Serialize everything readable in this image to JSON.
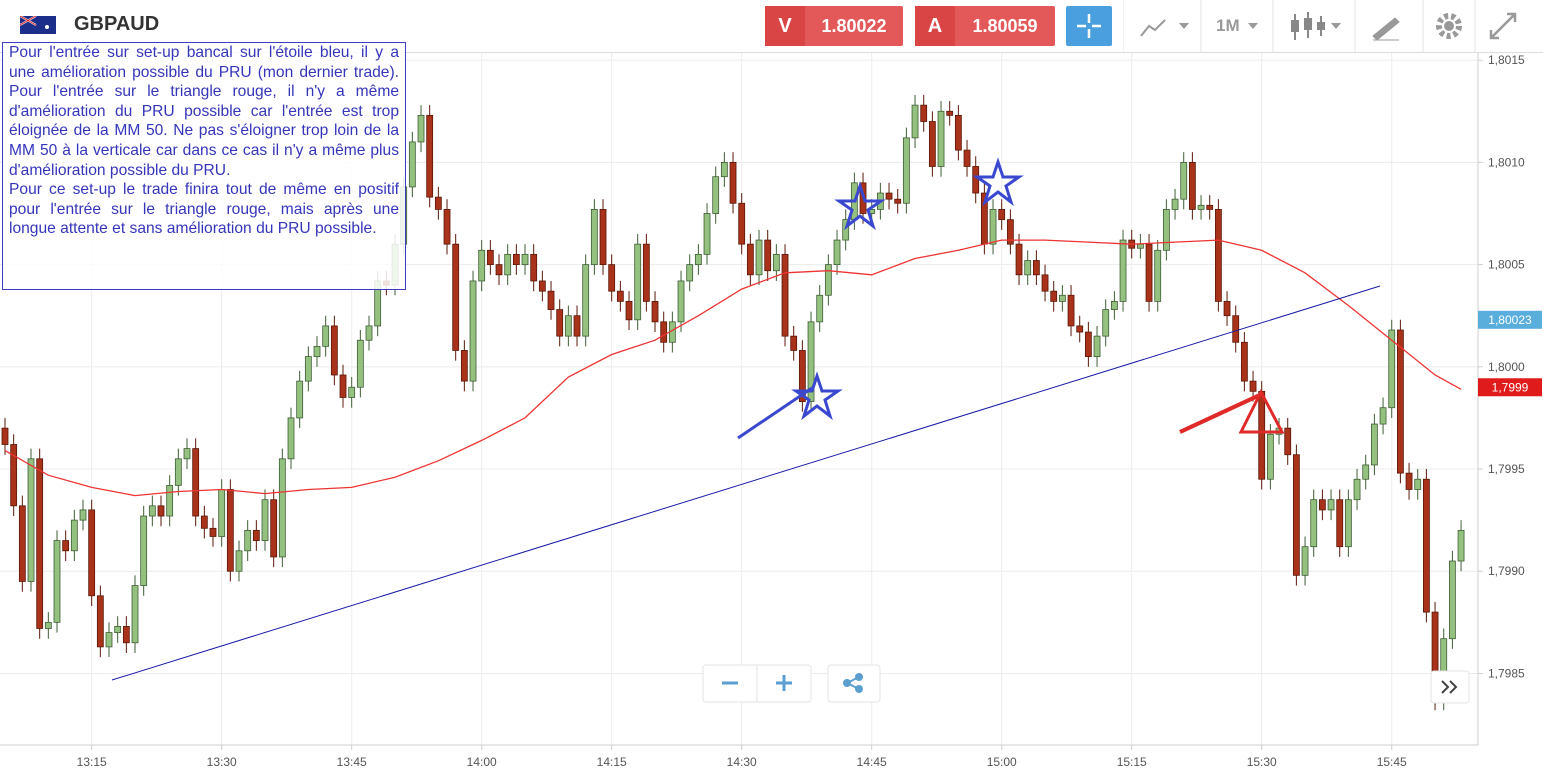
{
  "header": {
    "symbol": "GBPAUD",
    "bid_label": "V",
    "bid": 1.80022,
    "ask_label": "A",
    "ask": 1.80059,
    "timeframe": "1M"
  },
  "chart_data": {
    "type": "candlestick",
    "up_color": "#94c17f",
    "down_color": "#a8321a",
    "categories": [
      "13:05",
      "13:06",
      "13:07",
      "13:08",
      "13:09",
      "13:10",
      "13:11",
      "13:12",
      "13:13",
      "13:14",
      "13:15",
      "13:16",
      "13:17",
      "13:18",
      "13:19",
      "13:20",
      "13:21",
      "13:22",
      "13:23",
      "13:24",
      "13:25",
      "13:26",
      "13:27",
      "13:28",
      "13:29",
      "13:30",
      "13:31",
      "13:32",
      "13:33",
      "13:34",
      "13:35",
      "13:36",
      "13:37",
      "13:38",
      "13:39",
      "13:40",
      "13:41",
      "13:42",
      "13:43",
      "13:44",
      "13:45",
      "13:46",
      "13:47",
      "13:48",
      "13:49",
      "13:50",
      "13:51",
      "13:52",
      "13:53",
      "13:54",
      "13:55",
      "13:56",
      "13:57",
      "13:58",
      "13:59",
      "14:00",
      "14:01",
      "14:02",
      "14:03",
      "14:04",
      "14:05",
      "14:06",
      "14:07",
      "14:08",
      "14:09",
      "14:10",
      "14:11",
      "14:12",
      "14:13",
      "14:14",
      "14:15",
      "14:16",
      "14:17",
      "14:18",
      "14:19",
      "14:20",
      "14:21",
      "14:22",
      "14:23",
      "14:24",
      "14:25",
      "14:26",
      "14:27",
      "14:28",
      "14:29",
      "14:30",
      "14:31",
      "14:32",
      "14:33",
      "14:34",
      "14:35",
      "14:36",
      "14:37",
      "14:38",
      "14:39",
      "14:40",
      "14:41",
      "14:42",
      "14:43",
      "14:44",
      "14:45",
      "14:46",
      "14:47",
      "14:48",
      "14:49",
      "14:50",
      "14:51",
      "14:52",
      "14:53",
      "14:54",
      "14:55",
      "14:56",
      "14:57",
      "14:58",
      "14:59",
      "15:00",
      "15:01",
      "15:02",
      "15:03",
      "15:04",
      "15:05",
      "15:06",
      "15:07",
      "15:08",
      "15:09",
      "15:10",
      "15:11",
      "15:12",
      "15:13",
      "15:14",
      "15:15",
      "15:16",
      "15:17",
      "15:18",
      "15:19",
      "15:20",
      "15:21",
      "15:22",
      "15:23",
      "15:24",
      "15:25",
      "15:26",
      "15:27",
      "15:28",
      "15:29",
      "15:30",
      "15:31",
      "15:32",
      "15:33",
      "15:34",
      "15:35",
      "15:36",
      "15:37",
      "15:38",
      "15:39",
      "15:40",
      "15:41",
      "15:42",
      "15:43",
      "15:44",
      "15:45",
      "15:46",
      "15:47",
      "15:48",
      "15:49",
      "15:50",
      "15:51",
      "15:52",
      "15:53"
    ],
    "open": [
      1.7997,
      1.79962,
      1.79932,
      1.79895,
      1.79955,
      1.79872,
      1.79875,
      1.79915,
      1.7991,
      1.79925,
      1.7993,
      1.79888,
      1.79863,
      1.7987,
      1.79873,
      1.79865,
      1.79893,
      1.79927,
      1.79932,
      1.79927,
      1.79942,
      1.79955,
      1.7996,
      1.79927,
      1.79921,
      1.79917,
      1.7994,
      1.799,
      1.7991,
      1.7992,
      1.79915,
      1.79935,
      1.79907,
      1.79955,
      1.79975,
      1.79993,
      1.80005,
      1.8001,
      1.8002,
      1.79996,
      1.79985,
      1.7999,
      1.80013,
      1.8002,
      1.80042,
      1.8004,
      1.8006,
      1.80088,
      1.8011,
      1.80123,
      1.80083,
      1.80077,
      1.8006,
      1.80008,
      1.79993,
      1.80042,
      1.80057,
      1.8005,
      1.80045,
      1.80055,
      1.8005,
      1.80055,
      1.80042,
      1.80037,
      1.80028,
      1.80015,
      1.80025,
      1.80015,
      1.8005,
      1.80077,
      1.8005,
      1.80037,
      1.80032,
      1.80023,
      1.8006,
      1.80032,
      1.80022,
      1.80012,
      1.80022,
      1.80042,
      1.8005,
      1.80055,
      1.80075,
      1.80093,
      1.801,
      1.8008,
      1.8006,
      1.80045,
      1.80062,
      1.80047,
      1.80055,
      1.80015,
      1.80008,
      1.79983,
      1.80022,
      1.80035,
      1.8005,
      1.80062,
      1.80072,
      1.8009,
      1.80075,
      1.80077,
      1.80085,
      1.80082,
      1.8008,
      1.80112,
      1.80128,
      1.8012,
      1.80098,
      1.80125,
      1.80123,
      1.80106,
      1.80098,
      1.80085,
      1.8006,
      1.80077,
      1.80072,
      1.8006,
      1.80045,
      1.80052,
      1.80045,
      1.80037,
      1.80032,
      1.80035,
      1.8002,
      1.80017,
      1.80005,
      1.80015,
      1.80028,
      1.80032,
      1.80062,
      1.80058,
      1.8006,
      1.80032,
      1.80057,
      1.80077,
      1.80082,
      1.801,
      1.80077,
      1.80079,
      1.80077,
      1.80032,
      1.80025,
      1.80012,
      1.79993,
      1.79988,
      1.79945,
      1.79967,
      1.7997,
      1.79957,
      1.79898,
      1.79912,
      1.79935,
      1.7993,
      1.79935,
      1.79912,
      1.79935,
      1.79945,
      1.79952,
      1.79972,
      1.7998,
      1.80018,
      1.79948,
      1.7994,
      1.79945,
      1.7988,
      1.79837,
      1.79867,
      1.79905
    ],
    "high": [
      1.79975,
      1.79967,
      1.79937,
      1.7996,
      1.7996,
      1.7988,
      1.7992,
      1.7992,
      1.7993,
      1.79935,
      1.79935,
      1.79893,
      1.79875,
      1.79878,
      1.79878,
      1.79898,
      1.79932,
      1.79937,
      1.79937,
      1.79947,
      1.7996,
      1.79965,
      1.79965,
      1.79932,
      1.79926,
      1.79945,
      1.79945,
      1.79915,
      1.79925,
      1.79925,
      1.7994,
      1.7994,
      1.7996,
      1.7998,
      1.79998,
      1.8001,
      1.80015,
      1.80025,
      1.80025,
      1.80001,
      1.79995,
      1.80018,
      1.80025,
      1.80047,
      1.80047,
      1.80065,
      1.80093,
      1.80115,
      1.80128,
      1.80128,
      1.80088,
      1.80082,
      1.80065,
      1.80013,
      1.80047,
      1.80062,
      1.80062,
      1.80055,
      1.8006,
      1.8006,
      1.8006,
      1.8006,
      1.80047,
      1.80042,
      1.80033,
      1.8003,
      1.8003,
      1.80055,
      1.80082,
      1.80082,
      1.80055,
      1.80042,
      1.80037,
      1.80065,
      1.80065,
      1.80037,
      1.80027,
      1.80027,
      1.80047,
      1.80055,
      1.8006,
      1.8008,
      1.80098,
      1.80105,
      1.80105,
      1.80085,
      1.80065,
      1.80067,
      1.80067,
      1.8006,
      1.8006,
      1.8002,
      1.80013,
      1.80027,
      1.8004,
      1.80055,
      1.80067,
      1.80077,
      1.80095,
      1.80095,
      1.80082,
      1.8009,
      1.8009,
      1.80087,
      1.80117,
      1.80133,
      1.80133,
      1.80125,
      1.8013,
      1.8013,
      1.80128,
      1.80111,
      1.80103,
      1.8009,
      1.80082,
      1.80082,
      1.80077,
      1.80065,
      1.80057,
      1.80057,
      1.8005,
      1.80042,
      1.8004,
      1.8004,
      1.80025,
      1.80022,
      1.8002,
      1.80033,
      1.80037,
      1.80067,
      1.80067,
      1.80065,
      1.80065,
      1.80062,
      1.80082,
      1.80087,
      1.80105,
      1.80105,
      1.80084,
      1.80084,
      1.80082,
      1.80037,
      1.8003,
      1.80017,
      1.79998,
      1.79993,
      1.79972,
      1.79975,
      1.79975,
      1.79962,
      1.79917,
      1.7994,
      1.7994,
      1.7994,
      1.7994,
      1.7994,
      1.7995,
      1.79957,
      1.79977,
      1.79985,
      1.80023,
      1.80023,
      1.79953,
      1.7995,
      1.7995,
      1.79885,
      1.79872,
      1.7991,
      1.79925
    ],
    "low": [
      1.79957,
      1.79927,
      1.7989,
      1.7989,
      1.79867,
      1.79867,
      1.7987,
      1.79905,
      1.79905,
      1.7992,
      1.79883,
      1.79858,
      1.79858,
      1.79865,
      1.7986,
      1.7986,
      1.79888,
      1.79922,
      1.79922,
      1.79922,
      1.79937,
      1.7995,
      1.79922,
      1.79916,
      1.79912,
      1.79912,
      1.79895,
      1.79895,
      1.79905,
      1.7991,
      1.7991,
      1.79902,
      1.79902,
      1.7995,
      1.7997,
      1.79988,
      1.8,
      1.80005,
      1.79991,
      1.7998,
      1.7998,
      1.79985,
      1.80008,
      1.80015,
      1.80035,
      1.80035,
      1.80055,
      1.80083,
      1.80105,
      1.80078,
      1.80072,
      1.80055,
      1.80003,
      1.79988,
      1.79988,
      1.80037,
      1.80045,
      1.8004,
      1.8004,
      1.80045,
      1.80045,
      1.80037,
      1.80032,
      1.80023,
      1.8001,
      1.8001,
      1.8001,
      1.8001,
      1.80045,
      1.80045,
      1.80032,
      1.80027,
      1.80018,
      1.80018,
      1.80027,
      1.80017,
      1.80007,
      1.80007,
      1.80017,
      1.80037,
      1.80045,
      1.8005,
      1.8007,
      1.80088,
      1.80075,
      1.80055,
      1.8004,
      1.8004,
      1.80042,
      1.80042,
      1.8001,
      1.80003,
      1.79978,
      1.79978,
      1.80017,
      1.8003,
      1.80045,
      1.80057,
      1.80067,
      1.8007,
      1.8007,
      1.80072,
      1.80077,
      1.80075,
      1.80075,
      1.80107,
      1.80115,
      1.80093,
      1.80093,
      1.80118,
      1.80101,
      1.80093,
      1.8008,
      1.80055,
      1.80055,
      1.80067,
      1.80055,
      1.8004,
      1.8004,
      1.8004,
      1.80032,
      1.80027,
      1.80027,
      1.80015,
      1.80012,
      1.8,
      1.8,
      1.8001,
      1.80023,
      1.80027,
      1.80053,
      1.80053,
      1.80027,
      1.80027,
      1.80052,
      1.80072,
      1.80077,
      1.80072,
      1.80072,
      1.80072,
      1.80027,
      1.8002,
      1.80007,
      1.79988,
      1.79983,
      1.7994,
      1.7994,
      1.79962,
      1.79952,
      1.79893,
      1.79893,
      1.79907,
      1.79925,
      1.79925,
      1.79907,
      1.79907,
      1.7993,
      1.7994,
      1.79947,
      1.79967,
      1.79975,
      1.79943,
      1.79935,
      1.79935,
      1.79875,
      1.79832,
      1.79832,
      1.79862,
      1.799
    ],
    "close": [
      1.79962,
      1.79932,
      1.79895,
      1.79955,
      1.79872,
      1.79875,
      1.79915,
      1.7991,
      1.79925,
      1.7993,
      1.79888,
      1.79863,
      1.7987,
      1.79873,
      1.79865,
      1.79893,
      1.79927,
      1.79932,
      1.79927,
      1.79942,
      1.79955,
      1.7996,
      1.79927,
      1.79921,
      1.79917,
      1.7994,
      1.799,
      1.7991,
      1.7992,
      1.79915,
      1.79935,
      1.79907,
      1.79955,
      1.79975,
      1.79993,
      1.80005,
      1.8001,
      1.8002,
      1.79996,
      1.79985,
      1.7999,
      1.80013,
      1.8002,
      1.80042,
      1.8004,
      1.8006,
      1.80088,
      1.8011,
      1.80123,
      1.80083,
      1.80077,
      1.8006,
      1.80008,
      1.79993,
      1.80042,
      1.80057,
      1.8005,
      1.80045,
      1.80055,
      1.8005,
      1.80055,
      1.80042,
      1.80037,
      1.80028,
      1.80015,
      1.80025,
      1.80015,
      1.8005,
      1.80077,
      1.8005,
      1.80037,
      1.80032,
      1.80023,
      1.8006,
      1.80032,
      1.80022,
      1.80012,
      1.80022,
      1.80042,
      1.8005,
      1.80055,
      1.80075,
      1.80093,
      1.801,
      1.8008,
      1.8006,
      1.80045,
      1.80062,
      1.80047,
      1.80055,
      1.80015,
      1.80008,
      1.79983,
      1.80022,
      1.80035,
      1.8005,
      1.80062,
      1.80072,
      1.8009,
      1.80075,
      1.80077,
      1.80085,
      1.80082,
      1.8008,
      1.80112,
      1.80128,
      1.8012,
      1.80098,
      1.80125,
      1.80123,
      1.80106,
      1.80098,
      1.80085,
      1.8006,
      1.80077,
      1.80072,
      1.8006,
      1.80045,
      1.80052,
      1.80045,
      1.80037,
      1.80032,
      1.80035,
      1.8002,
      1.80017,
      1.80005,
      1.80015,
      1.80028,
      1.80032,
      1.80062,
      1.80058,
      1.8006,
      1.80032,
      1.80057,
      1.80077,
      1.80082,
      1.801,
      1.80077,
      1.80079,
      1.80077,
      1.80032,
      1.80025,
      1.80012,
      1.79993,
      1.79988,
      1.79945,
      1.79967,
      1.7997,
      1.79957,
      1.79898,
      1.79912,
      1.79935,
      1.7993,
      1.79935,
      1.79912,
      1.79935,
      1.79945,
      1.79952,
      1.79972,
      1.7998,
      1.80018,
      1.79948,
      1.7994,
      1.79945,
      1.7988,
      1.79837,
      1.79867,
      1.79905,
      1.7992
    ],
    "ma": {
      "color": "#ee3333",
      "x": [
        "13:05",
        "13:10",
        "13:15",
        "13:20",
        "13:25",
        "13:30",
        "13:35",
        "13:40",
        "13:45",
        "13:50",
        "13:55",
        "14:00",
        "14:05",
        "14:10",
        "14:15",
        "14:20",
        "14:25",
        "14:30",
        "14:35",
        "14:40",
        "14:45",
        "14:50",
        "14:55",
        "15:00",
        "15:05",
        "15:10",
        "15:15",
        "15:20",
        "15:25",
        "15:30",
        "15:35",
        "15:40",
        "15:45",
        "15:50",
        "15:53"
      ],
      "values": [
        1.79959,
        1.79947,
        1.79941,
        1.79937,
        1.79939,
        1.7994,
        1.79938,
        1.7994,
        1.79941,
        1.79946,
        1.79954,
        1.79964,
        1.79975,
        1.79995,
        1.80006,
        1.80013,
        1.80025,
        1.80038,
        1.80046,
        1.80047,
        1.80045,
        1.80053,
        1.80057,
        1.80062,
        1.80062,
        1.80061,
        1.8006,
        1.80061,
        1.80062,
        1.80057,
        1.80046,
        1.8003,
        1.80013,
        1.79996,
        1.79989
      ]
    },
    "ylim": [
      1.79815,
      1.80154
    ],
    "yticks": [
      {
        "value": 1.7985,
        "label": "1,7985"
      },
      {
        "value": 1.799,
        "label": "1,7990"
      },
      {
        "value": 1.7995,
        "label": "1,7995"
      },
      {
        "value": 1.8,
        "label": "1,8000"
      },
      {
        "value": 1.8005,
        "label": "1,8005"
      },
      {
        "value": 1.801,
        "label": "1,8010"
      },
      {
        "value": 1.8015,
        "label": "1,8015"
      }
    ],
    "xticks": [
      "13:15",
      "13:30",
      "13:45",
      "14:00",
      "14:15",
      "14:30",
      "14:45",
      "15:00",
      "15:15",
      "15:30",
      "15:45"
    ],
    "grid": true,
    "price_markers": [
      {
        "value": 1.80023,
        "label": "1,80023",
        "color": "#5aaedc"
      },
      {
        "value": 1.7999,
        "label": "1,7999",
        "color": "#e01b1b"
      }
    ],
    "annotation": [
      "Pour l'entrée sur set-up bancal sur l'étoile bleu, il y a une amélioration possible du PRU (mon dernier trade). Pour l'entrée sur le triangle rouge, il n'y a même d'amélioration du PRU possible car l'entrée est trop éloignée de la MM 50. Ne pas s'éloigner trop loin de la MM 50 à la verticale car dans ce cas il n'y a même plus d'amélioration possible du PRU.",
      "Pour ce set-up le trade finira tout de même en positif pour l'entrée sur le triangle rouge, mais après une longue attente et sans amélioration du PRU possible."
    ]
  }
}
